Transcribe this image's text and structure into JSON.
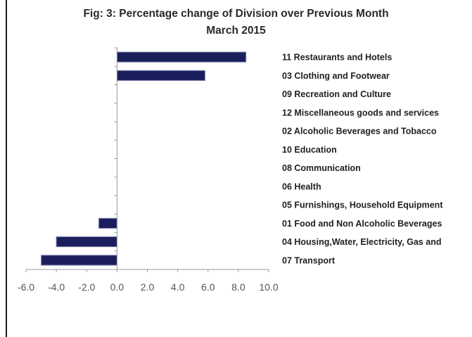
{
  "chart_data": {
    "type": "bar",
    "orientation": "horizontal",
    "title": "Fig: 3: Percentage change of Division over Previous Month",
    "subtitle": "March 2015",
    "xlabel": "",
    "ylabel": "",
    "xlim": [
      -6.0,
      10.0
    ],
    "x_ticks": [
      "-6.0",
      "-4.0",
      "-2.0",
      "0.0",
      "2.0",
      "4.0",
      "6.0",
      "8.0",
      "10.0"
    ],
    "grid": false,
    "legend": "none",
    "categories": [
      "11 Restaurants and Hotels",
      "03 Clothing and Footwear",
      "09 Recreation and Culture",
      "12 Miscellaneous goods and services",
      "02 Alcoholic Beverages and Tobacco",
      "10 Education",
      "08 Communication",
      "06 Health",
      "05 Furnishings, Household Equipment",
      "01 Food and Non Alcoholic Beverages",
      "04 Housing,Water, Electricity, Gas and",
      "07 Transport"
    ],
    "values": [
      8.5,
      5.8,
      0,
      0,
      0,
      0,
      0,
      0,
      0,
      -1.2,
      -4.0,
      -5.0
    ],
    "bar_color": "#1a1f5c",
    "bar_edge_color": "#7f83b0"
  }
}
